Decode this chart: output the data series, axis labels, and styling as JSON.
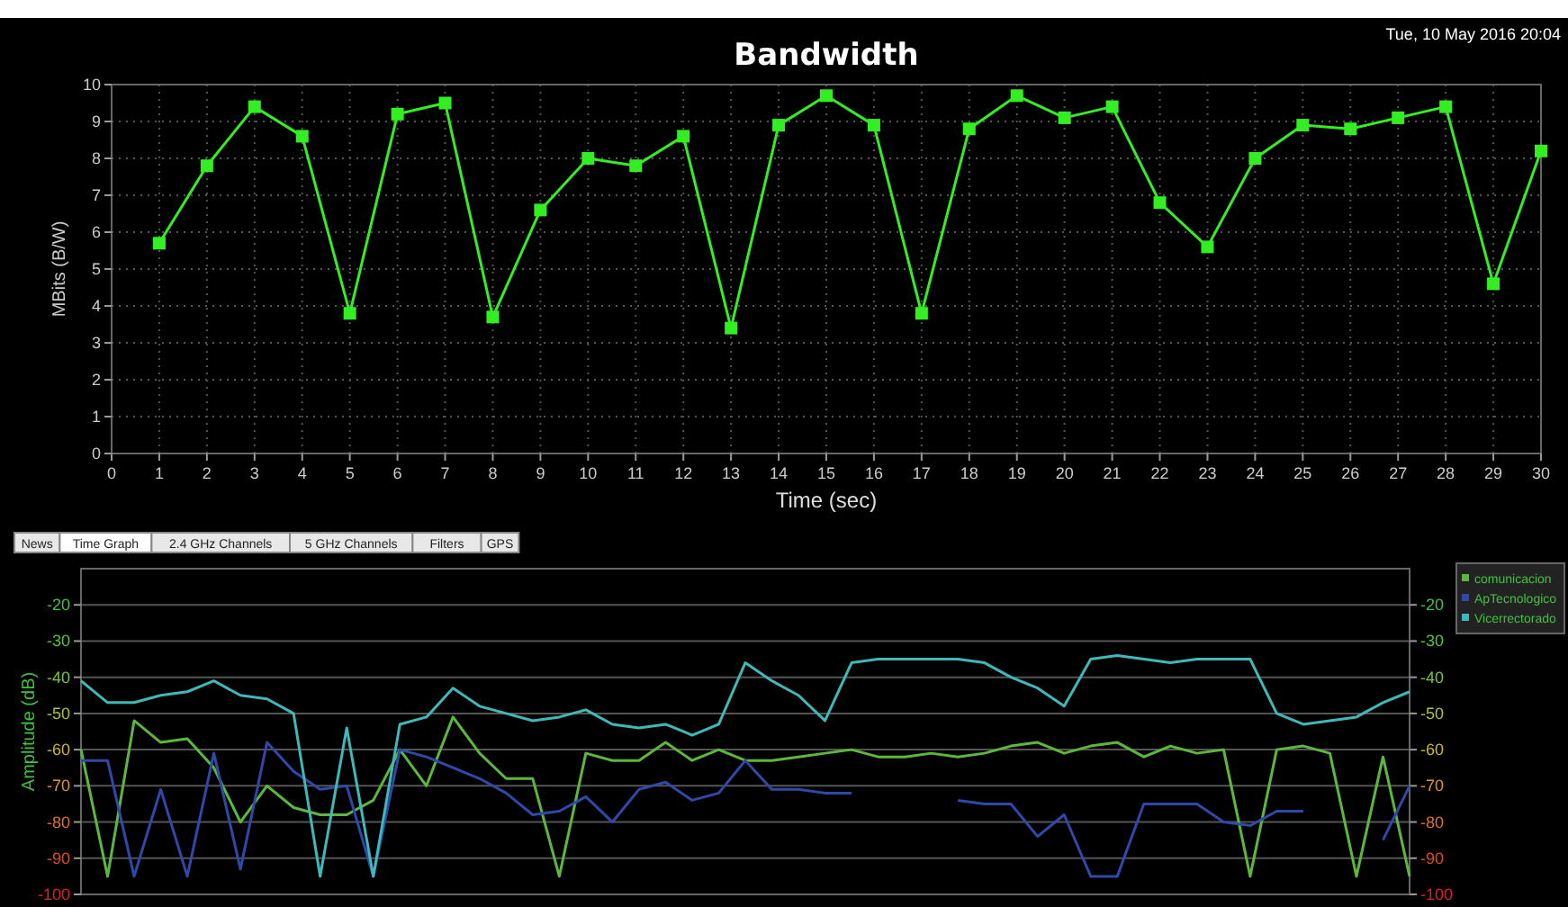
{
  "chart_data": [
    {
      "type": "line",
      "title": "Bandwidth",
      "xlabel": "Time (sec)",
      "ylabel": "MBits (B/W)",
      "annotations": [
        "Tue, 10 May 2016 20:04"
      ],
      "x": [
        1,
        2,
        3,
        4,
        5,
        6,
        7,
        8,
        9,
        10,
        11,
        12,
        13,
        14,
        15,
        16,
        17,
        18,
        19,
        20,
        21,
        22,
        23,
        24,
        25,
        26,
        27,
        28,
        29,
        30
      ],
      "series": [
        {
          "color": "#33ee22",
          "values": [
            5.7,
            7.8,
            9.4,
            8.6,
            3.8,
            9.2,
            9.5,
            3.7,
            6.6,
            8.0,
            7.8,
            8.6,
            3.4,
            8.9,
            9.7,
            8.9,
            3.8,
            8.8,
            9.7,
            9.1,
            9.4,
            6.8,
            5.6,
            8.0,
            8.9,
            8.8,
            9.1,
            9.4,
            4.6,
            8.2
          ]
        }
      ],
      "xlim": [
        0,
        30
      ],
      "xticks": [
        0,
        1,
        2,
        3,
        4,
        5,
        6,
        7,
        8,
        9,
        10,
        11,
        12,
        13,
        14,
        15,
        16,
        17,
        18,
        19,
        20,
        21,
        22,
        23,
        24,
        25,
        26,
        27,
        28,
        29,
        30
      ],
      "ylim": [
        0,
        10
      ],
      "yticks": [
        0,
        1,
        2,
        3,
        4,
        5,
        6,
        7,
        8,
        9,
        10
      ],
      "grid": true,
      "marker": "square"
    },
    {
      "type": "line",
      "ylabel": "Amplitude (dB)",
      "annotations": [
        "News",
        "Time Graph",
        "2.4 GHz Channels",
        "5 GHz Channels",
        "Filters",
        "GPS"
      ],
      "categories": [
        null,
        null,
        null,
        null,
        null,
        null,
        null,
        null,
        null,
        null,
        null,
        null,
        null,
        null,
        null,
        null,
        null,
        null,
        null,
        null,
        null,
        null,
        null,
        null,
        null,
        null,
        null,
        null,
        null,
        null,
        null,
        null,
        null,
        null,
        null,
        null,
        null,
        null,
        null,
        null,
        null,
        null,
        null,
        null,
        null,
        null,
        null,
        null,
        null,
        null,
        null
      ],
      "series": [
        {
          "name": "comunicacion",
          "color": "#5cb83c",
          "values": [
            -60,
            -95,
            -52,
            -58,
            -57,
            -65,
            -80,
            -70,
            -76,
            -78,
            -78,
            -74,
            -60,
            -70,
            -51,
            -61,
            -68,
            -68,
            -95,
            -61,
            -63,
            -63,
            -58,
            -63,
            -60,
            -63,
            -63,
            -62,
            -61,
            -60,
            -62,
            -62,
            -61,
            -62,
            -61,
            -59,
            -58,
            -61,
            -59,
            -58,
            -62,
            -59,
            -61,
            -60,
            -95,
            -60,
            -59,
            -61,
            -95,
            -62,
            -95
          ]
        },
        {
          "name": "ApTecnologico",
          "color": "#3048a8",
          "values": [
            -63,
            -63,
            -95,
            -71,
            -95,
            -61,
            -93,
            -58,
            -66,
            -71,
            -70,
            -95,
            -60,
            -62,
            -65,
            -68,
            -72,
            -78,
            -77,
            -73,
            -80,
            -71,
            -69,
            -74,
            -72,
            -63,
            -71,
            -71,
            -72,
            -72,
            null,
            null,
            null,
            -74,
            -75,
            -75,
            -84,
            -78,
            -95,
            -95,
            -75,
            -75,
            -75,
            -80,
            -81,
            -77,
            -77,
            null,
            null,
            -85,
            -70
          ]
        },
        {
          "name": "Vicerrectorado",
          "color": "#3fb8b8",
          "values": [
            -41,
            -47,
            -47,
            -45,
            -44,
            -41,
            -45,
            -46,
            -50,
            -95,
            -54,
            -95,
            -53,
            -51,
            -43,
            -48,
            -50,
            -52,
            -51,
            -49,
            -53,
            -54,
            -53,
            -56,
            -53,
            -36,
            -41,
            -45,
            -52,
            -36,
            -35,
            -35,
            -35,
            -35,
            -36,
            -40,
            -43,
            -48,
            -35,
            -34,
            -35,
            -36,
            -35,
            -35,
            -35,
            -50,
            -53,
            -52,
            -51,
            -47,
            -44
          ]
        }
      ],
      "ylim": [
        -100,
        -10
      ],
      "yticks": [
        -20,
        -30,
        -40,
        -50,
        -60,
        -70,
        -80,
        -90,
        -100
      ],
      "y2lim": [
        -100,
        -10
      ],
      "y2ticks": [
        -20,
        -30,
        -40,
        -50,
        -60,
        -70,
        -80,
        -90,
        -100
      ],
      "grid": "y",
      "legend": "top right",
      "tick_labels": "y"
    }
  ]
}
